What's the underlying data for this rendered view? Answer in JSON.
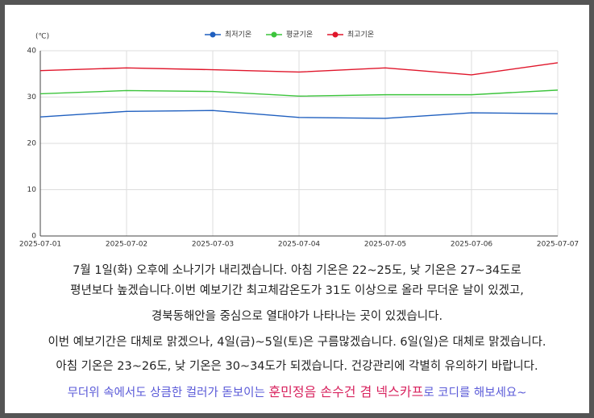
{
  "chart_data": {
    "type": "line",
    "unit_label": "(℃)",
    "categories": [
      "2025-07-01",
      "2025-07-02",
      "2025-07-03",
      "2025-07-04",
      "2025-07-05",
      "2025-07-06",
      "2025-07-07"
    ],
    "series": [
      {
        "name": "최저기온",
        "color": "#1f5fbf",
        "values": [
          25.7,
          26.9,
          27.1,
          25.6,
          25.4,
          26.6,
          26.4
        ]
      },
      {
        "name": "평균기온",
        "color": "#3cc43c",
        "values": [
          30.7,
          31.4,
          31.2,
          30.2,
          30.5,
          30.5,
          31.5
        ]
      },
      {
        "name": "최고기온",
        "color": "#e0162b",
        "values": [
          35.7,
          36.3,
          35.9,
          35.4,
          36.3,
          34.8,
          37.4
        ]
      }
    ],
    "ylim": [
      0,
      40
    ],
    "yticks": [
      0,
      10,
      20,
      30,
      40
    ],
    "grid": true,
    "legend": "top"
  },
  "text": {
    "lines": [
      "7월 1일(화) 오후에 소나기가 내리겠습니다. 아침 기온은 22~25도, 낮 기온은 27~34도로",
      "평년보다 높겠습니다.이번 예보기간 최고체감온도가 31도 이상으로 올라 무더운 날이 있겠고,",
      "경북동해안을 중심으로 열대야가 나타나는 곳이 있겠습니다.",
      "이번 예보기간은 대체로 맑겠으나, 4일(금)~5일(토)은 구름많겠습니다. 6일(일)은 대체로 맑겠습니다.",
      "아침 기온은 23~26도, 낮 기온은 30~34도가 되겠습니다. 건강관리에 각별히 유의하기 바랍니다."
    ],
    "promo": [
      "무더위 속에서도 상큼한 컬러가 돋보이는 ",
      "훈민정음 손수건 겸 넥스카프",
      "로 코디를 해보세요~"
    ]
  }
}
